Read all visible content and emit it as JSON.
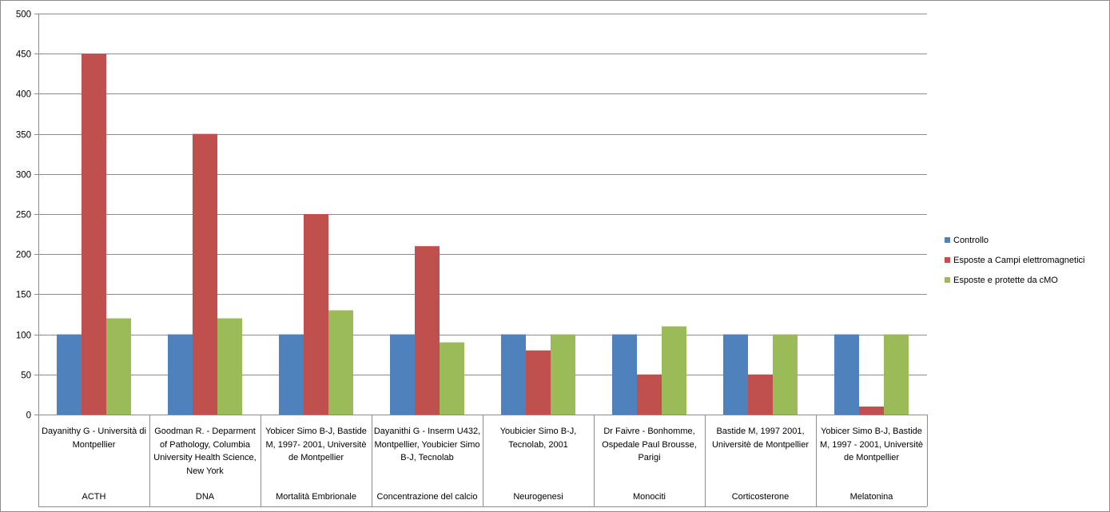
{
  "chart_data": {
    "type": "bar",
    "title": "",
    "ylim": [
      0,
      500
    ],
    "yticks": [
      0,
      50,
      100,
      150,
      200,
      250,
      300,
      350,
      400,
      450,
      500
    ],
    "grid": true,
    "legend_position": "right",
    "categories": [
      {
        "source": "Dayanithy G - Università di Montpellier",
        "group": "ACTH"
      },
      {
        "source": "Goodman R. - Deparment of Pathology,  Columbia University Health Science, New York",
        "group": "DNA"
      },
      {
        "source": "Yobicer Simo B-J, Bastide M, 1997- 2001, Universitè de Montpellier",
        "group": "Mortalità Embrionale"
      },
      {
        "source": "Dayanithi G - Inserm U432, Montpellier, Youbicier Simo B-J, Tecnolab",
        "group": "Concentrazione del calcio"
      },
      {
        "source": "Youbicier Simo B-J, Tecnolab, 2001",
        "group": "Neurogenesi"
      },
      {
        "source": "Dr Faivre - Bonhomme, Ospedale Paul Brousse, Parigi",
        "group": "Monociti"
      },
      {
        "source": "Bastide M, 1997 2001, Universitè de Montpellier",
        "group": "Corticosterone"
      },
      {
        "source": "Yobicer Simo B-J, Bastide M, 1997 - 2001, Universitè de Montpellier",
        "group": "Melatonina"
      }
    ],
    "series": [
      {
        "name": "Controllo",
        "color": "#4F81BD",
        "values": [
          100,
          100,
          100,
          100,
          100,
          100,
          100,
          100
        ]
      },
      {
        "name": "Esposte a Campi  elettromagnetici",
        "color": "#C0504D",
        "values": [
          450,
          350,
          250,
          210,
          80,
          50,
          50,
          10
        ]
      },
      {
        "name": "Esposte e protette da cMO",
        "color": "#9BBB59",
        "values": [
          120,
          120,
          130,
          90,
          100,
          110,
          100,
          100
        ]
      }
    ]
  }
}
